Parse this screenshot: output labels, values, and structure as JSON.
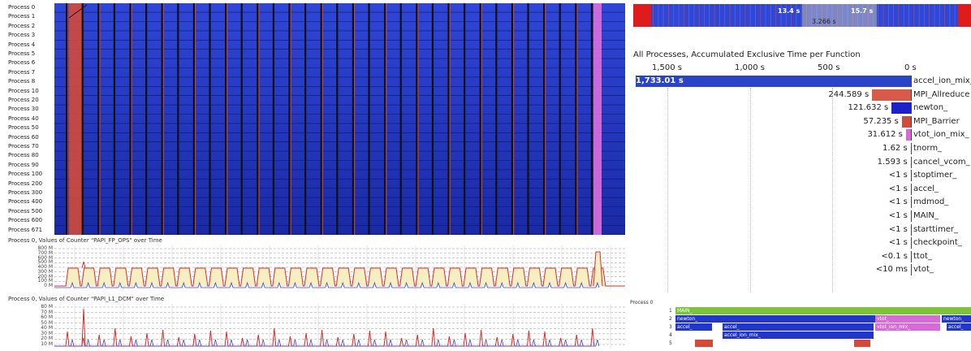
{
  "timeline": {
    "process_labels": [
      "Process 0",
      "Process 1",
      "Process 2",
      "Process 3",
      "Process 4",
      "Process 5",
      "Process 6",
      "Process 7",
      "Process 8",
      "Process 10",
      "Process 20",
      "Process 30",
      "Process 40",
      "Process 50",
      "Process 60",
      "Process 70",
      "Process 80",
      "Process 90",
      "Process 100",
      "Process 200",
      "Process 300",
      "Process 400",
      "Process 500",
      "Process 600",
      "Process 671"
    ],
    "colors": {
      "compute": "#2236c8",
      "mpi": "#d44a3a",
      "ion_mix": "#d86ad8",
      "sync": "#111111"
    }
  },
  "counters": [
    {
      "title": "Process 0, Values of Counter \"PAPI_FP_OPS\" over Time",
      "y_labels": [
        "800 M",
        "700 M",
        "600 M",
        "500 M",
        "400 M",
        "300 M",
        "200 M",
        "100 M",
        "0 M"
      ]
    },
    {
      "title": "Process 0, Values of Counter \"PAPI_L1_DCM\" over Time",
      "y_labels": [
        "80 M",
        "70 M",
        "60 M",
        "50 M",
        "40 M",
        "30 M",
        "20 M",
        "10 M"
      ]
    }
  ],
  "overview": {
    "markers": [
      "13.4 s",
      "15.7 s"
    ],
    "selection_label": "3.266 s",
    "colors": {
      "fill": "#2f46d6",
      "edge": "#e01b1b"
    }
  },
  "summary": {
    "title": "All Processes, Accumulated Exclusive Time per Function",
    "axis_ticks": [
      "1,500 s",
      "1,000 s",
      "500 s",
      "0 s"
    ],
    "rows": [
      {
        "value": "1,733.01 s",
        "name": "accel_ion_mix_",
        "seconds": 1733.01,
        "color": "#2a44c8"
      },
      {
        "value": "244.589 s",
        "name": "MPI_Allreduce",
        "seconds": 244.589,
        "color": "#d85a4a"
      },
      {
        "value": "121.632 s",
        "name": "newton_",
        "seconds": 121.632,
        "color": "#1c22c8"
      },
      {
        "value": "57.235 s",
        "name": "MPI_Barrier",
        "seconds": 57.235,
        "color": "#d24a3c"
      },
      {
        "value": "31.612 s",
        "name": "vtot_ion_mix_",
        "seconds": 31.612,
        "color": "#d86ad8"
      },
      {
        "value": "1.62 s",
        "name": "tnorm_",
        "seconds": 1.62,
        "color": "#2a44c8"
      },
      {
        "value": "1.593 s",
        "name": "cancel_vcom_",
        "seconds": 1.593,
        "color": "#2a44c8"
      },
      {
        "value": "<1 s",
        "name": "stoptimer_",
        "seconds": 0.5,
        "color": "#2a44c8"
      },
      {
        "value": "<1 s",
        "name": "accel_",
        "seconds": 0.5,
        "color": "#2a44c8"
      },
      {
        "value": "<1 s",
        "name": "mdmod_",
        "seconds": 0.5,
        "color": "#2a44c8"
      },
      {
        "value": "<1 s",
        "name": "MAIN_",
        "seconds": 0.5,
        "color": "#2a44c8"
      },
      {
        "value": "<1 s",
        "name": "starttimer_",
        "seconds": 0.5,
        "color": "#2a44c8"
      },
      {
        "value": "<1 s",
        "name": "checkpoint_",
        "seconds": 0.5,
        "color": "#2a44c8"
      },
      {
        "value": "<0.1 s",
        "name": "ttot_",
        "seconds": 0.05,
        "color": "#2a44c8"
      },
      {
        "value": "<10 ms",
        "name": "vtot_",
        "seconds": 0.005,
        "color": "#2a44c8"
      }
    ]
  },
  "callstack": {
    "title": "Process 0",
    "depths": [
      "1",
      "2",
      "3",
      "4",
      "5"
    ],
    "bars": [
      {
        "depth": 0,
        "label": "MAIN_",
        "color": "#7cc33a"
      },
      {
        "depth": 1,
        "label": "newton_",
        "color": "#2236c8"
      },
      {
        "depth": 1,
        "label": "vtot_",
        "color": "#d86ad8"
      },
      {
        "depth": 1,
        "label": "newton_",
        "color": "#2236c8"
      },
      {
        "depth": 2,
        "label": "accel_",
        "color": "#2236c8"
      },
      {
        "depth": 2,
        "label": "accel_",
        "color": "#2236c8"
      },
      {
        "depth": 2,
        "label": "vtot_ion_mix_",
        "color": "#d86ad8"
      },
      {
        "depth": 2,
        "label": "accel_",
        "color": "#2236c8"
      },
      {
        "depth": 3,
        "label": "accel_ion_mix_",
        "color": "#2236c8"
      },
      {
        "depth": 4,
        "label": "",
        "color": "#d44a3a"
      },
      {
        "depth": 4,
        "label": "",
        "color": "#d44a3a"
      }
    ]
  }
}
